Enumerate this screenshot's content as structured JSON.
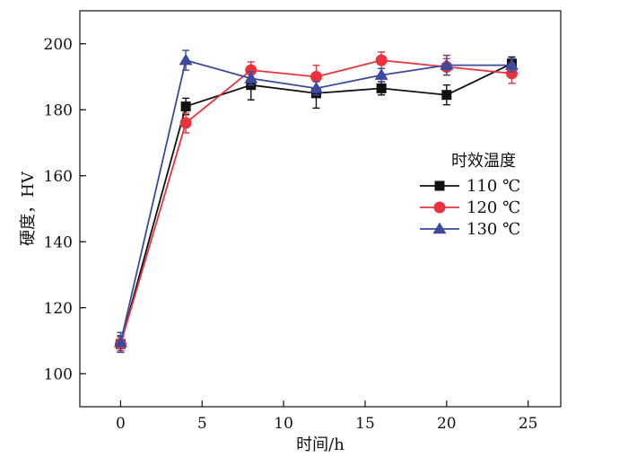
{
  "chart_data": {
    "type": "line",
    "xlabel": "时间/h",
    "ylabel": "硬度，HV",
    "xlim": [
      -2.5,
      27
    ],
    "ylim": [
      90,
      210
    ],
    "xticks": [
      0,
      5,
      10,
      15,
      20,
      25
    ],
    "yticks": [
      100,
      120,
      140,
      160,
      180,
      200
    ],
    "grid": false,
    "legend": {
      "title": "时效温度",
      "placement": "right-center"
    },
    "x": [
      0,
      4,
      8,
      12,
      16,
      20,
      24
    ],
    "series": [
      {
        "name": "110 ℃",
        "color": "#111111",
        "marker": "square",
        "values": [
          109,
          181,
          187.5,
          185,
          186.5,
          184.5,
          194
        ],
        "errors": [
          2.5,
          2.5,
          4.5,
          4.5,
          2,
          3,
          2
        ]
      },
      {
        "name": "120 ℃",
        "color": "#e8333f",
        "marker": "circle",
        "values": [
          109,
          176,
          192,
          190,
          195,
          193,
          191
        ],
        "errors": [
          2,
          3,
          2.5,
          3.5,
          2.5,
          2.5,
          3
        ]
      },
      {
        "name": "130 ℃",
        "color": "#3b4a9c",
        "marker": "triangle",
        "values": [
          109.5,
          195,
          189.5,
          186.5,
          190.5,
          193.5,
          193.5
        ],
        "errors": [
          3,
          3,
          2,
          2,
          2,
          3,
          2
        ]
      }
    ]
  }
}
